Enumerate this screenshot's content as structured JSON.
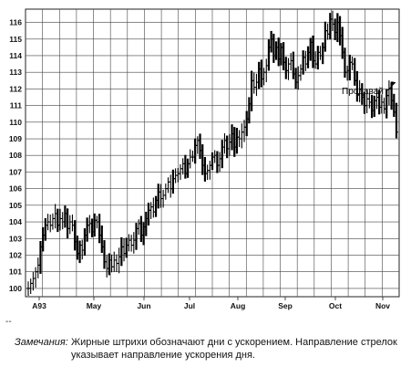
{
  "chart_data": {
    "type": "bar",
    "subtype": "ohlc",
    "xlabel": "",
    "ylabel": "",
    "ylim": [
      99.5,
      116.8
    ],
    "y_ticks": [
      100,
      101,
      102,
      103,
      104,
      105,
      106,
      107,
      108,
      109,
      110,
      111,
      112,
      113,
      114,
      115,
      116
    ],
    "x_ticks": [
      "A93",
      "May",
      "Jun",
      "Jul",
      "Aug",
      "Sep",
      "Oct",
      "Nov"
    ],
    "grid": true,
    "annotation": {
      "text": "Продавай",
      "x_index": 150,
      "y": 111.9,
      "arrow_to_y": 112.4
    },
    "series": [
      {
        "values": [
          100.0,
          100.3,
          100.6,
          101.0,
          101.4,
          102.5,
          103.2,
          103.8,
          104.0,
          103.8,
          104.2,
          104.5,
          103.8,
          104.2,
          104.0,
          104.5,
          103.6,
          104.0,
          103.8,
          102.8,
          102.1,
          102.6,
          102.3,
          103.2,
          103.8,
          103.9,
          103.4,
          104.1,
          104.0,
          103.2,
          102.5,
          101.6,
          101.2,
          101.7,
          101.3,
          101.7,
          101.5,
          101.9,
          102.5,
          102.1,
          102.6,
          102.9,
          102.6,
          102.9,
          103.6,
          103.9,
          103.2,
          103.7,
          104.2,
          104.7,
          104.9,
          104.6,
          105.3,
          105.8,
          105.4,
          105.6,
          106.0,
          106.4,
          106.0,
          106.6,
          106.8,
          106.9,
          107.2,
          107.5,
          106.9,
          107.5,
          107.9,
          107.9,
          108.6,
          108.9,
          108.3,
          107.4,
          106.9,
          107.1,
          107.4,
          107.9,
          108.0,
          107.4,
          107.8,
          108.5,
          108.9,
          108.4,
          108.8,
          109.3,
          108.5,
          109.1,
          109.0,
          109.4,
          109.7,
          110.2,
          111.1,
          112.5,
          112.1,
          112.4,
          113.2,
          112.6,
          113.0,
          113.4,
          114.5,
          115.0,
          114.0,
          114.5,
          113.8,
          114.5,
          113.6,
          113.1,
          113.5,
          113.7,
          112.9,
          112.4,
          112.8,
          113.2,
          113.9,
          113.5,
          114.2,
          114.8,
          113.7,
          113.5,
          114.2,
          114.0,
          114.5,
          115.5,
          115.3,
          116.2,
          115.9,
          115.4,
          116.0,
          115.2,
          114.2,
          113.0,
          113.1,
          113.6,
          113.5,
          112.5,
          111.7,
          112.0,
          111.5,
          111.0,
          111.4,
          111.2,
          110.7,
          111.3,
          111.5,
          110.9,
          111.2,
          110.8,
          111.6,
          112.0,
          111.3,
          110.6,
          109.4
        ]
      }
    ]
  },
  "caption": {
    "label": "Замечания:",
    "text": "Жирные штрихи обозначают дни с ускорением. Направление стрелок указывает направление ускорения дня."
  },
  "footer_dash": "--"
}
